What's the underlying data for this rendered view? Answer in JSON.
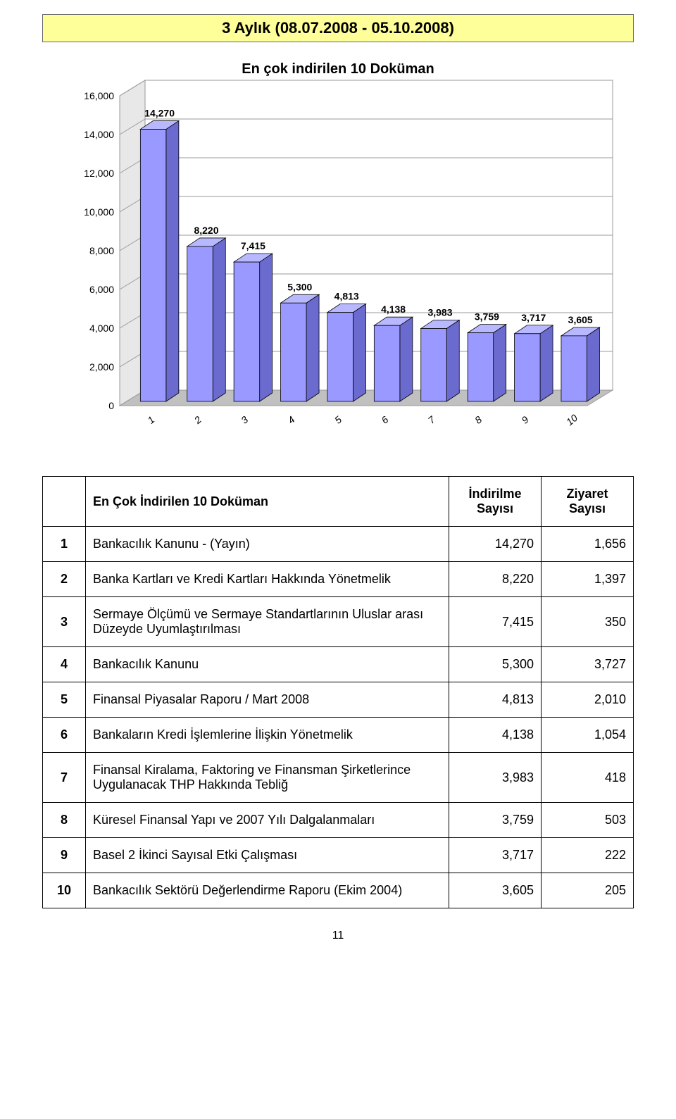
{
  "title": "3 Aylık (08.07.2008 - 05.10.2008)",
  "chart": {
    "type": "bar-3d",
    "title": "En çok indirilen 10 Doküman",
    "title_fontsize": 20,
    "title_bold": true,
    "categories": [
      "1",
      "2",
      "3",
      "4",
      "5",
      "6",
      "7",
      "8",
      "9",
      "10"
    ],
    "values": [
      14270,
      8220,
      7415,
      5300,
      4813,
      4138,
      3983,
      3759,
      3717,
      3605
    ],
    "value_labels": [
      "14,270",
      "8,220",
      "7,415",
      "5,300",
      "4,813",
      "4,138",
      "3,983",
      "3,759",
      "3,717",
      "3,605"
    ],
    "ylim": [
      0,
      16000
    ],
    "ytick_step": 2000,
    "ytick_labels": [
      "0",
      "2,000",
      "4,000",
      "6,000",
      "8,000",
      "10,000",
      "12,000",
      "14,000",
      "16,000"
    ],
    "bar_face_color": "#9999ff",
    "bar_top_color": "#b8b8ff",
    "bar_side_color": "#6b6bcf",
    "bar_border": "#000000",
    "floor_color": "#c0c0c0",
    "back_wall_color": "#ffffff",
    "side_wall_color": "#e8e8e8",
    "grid_color": "#9a9a9a",
    "label_fontsize": 14,
    "axis_font": "Arial",
    "bar_width_ratio": 0.55
  },
  "table": {
    "header": {
      "name": "En Çok İndirilen 10 Doküman",
      "col2": "İndirilme Sayısı",
      "col3": "Ziyaret Sayısı"
    },
    "rows": [
      {
        "idx": "1",
        "name": "Bankacılık Kanunu - (Yayın)",
        "c2": "14,270",
        "c3": "1,656"
      },
      {
        "idx": "2",
        "name": "Banka Kartları ve Kredi Kartları Hakkında Yönetmelik",
        "c2": "8,220",
        "c3": "1,397"
      },
      {
        "idx": "3",
        "name": "Sermaye Ölçümü ve Sermaye Standartlarının Uluslar arası Düzeyde Uyumlaştırılması",
        "c2": "7,415",
        "c3": "350"
      },
      {
        "idx": "4",
        "name": "Bankacılık Kanunu",
        "c2": "5,300",
        "c3": "3,727"
      },
      {
        "idx": "5",
        "name": "Finansal Piyasalar Raporu / Mart 2008",
        "c2": "4,813",
        "c3": "2,010"
      },
      {
        "idx": "6",
        "name": "Bankaların Kredi İşlemlerine İlişkin Yönetmelik",
        "c2": "4,138",
        "c3": "1,054"
      },
      {
        "idx": "7",
        "name": "Finansal Kiralama, Faktoring ve Finansman  Şirketlerince Uygulanacak THP Hakkında Tebliğ",
        "c2": "3,983",
        "c3": "418"
      },
      {
        "idx": "8",
        "name": "Küresel Finansal Yapı ve 2007 Yılı Dalgalanmaları",
        "c2": "3,759",
        "c3": "503"
      },
      {
        "idx": "9",
        "name": "Basel 2 İkinci Sayısal Etki Çalışması",
        "c2": "3,717",
        "c3": "222"
      },
      {
        "idx": "10",
        "name": "Bankacılık Sektörü Değerlendirme Raporu (Ekim 2004)",
        "c2": "3,605",
        "c3": "205"
      }
    ]
  },
  "page_number": "11"
}
